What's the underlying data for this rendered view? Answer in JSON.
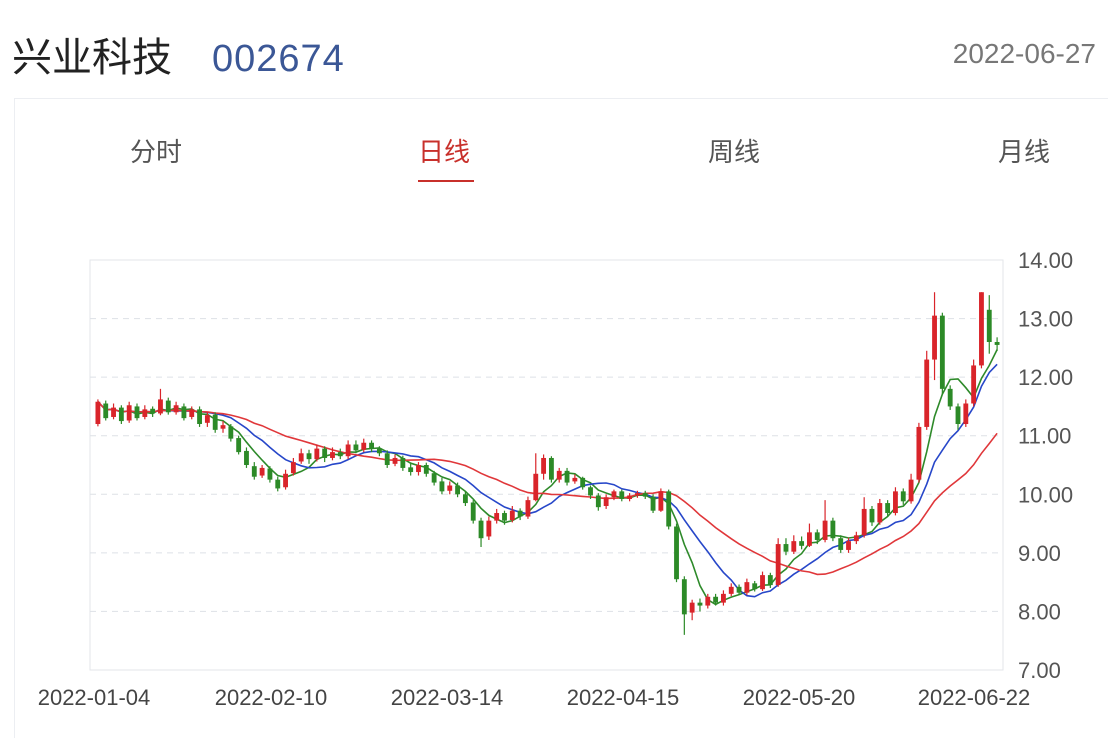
{
  "header": {
    "name": "兴业科技",
    "code": "002674",
    "date": "2022-06-27"
  },
  "tabs": [
    {
      "label": "分时",
      "active": false
    },
    {
      "label": "日线",
      "active": true
    },
    {
      "label": "周线",
      "active": false
    },
    {
      "label": "月线",
      "active": false
    }
  ],
  "colors": {
    "up": "#d9242a",
    "down": "#2c8a27",
    "ma_short": "#2e8a2a",
    "ma_mid": "#2747c9",
    "ma_long": "#e0373a",
    "accent": "#c8302b",
    "code": "#3b5796"
  },
  "chart_data": {
    "type": "candlestick",
    "ylim": [
      7.0,
      14.0
    ],
    "yticks": [
      "14.00",
      "13.00",
      "12.00",
      "11.00",
      "10.00",
      "9.00",
      "8.00",
      "7.00"
    ],
    "xticks": [
      "2022-01-04",
      "2022-02-10",
      "2022-03-14",
      "2022-04-15",
      "2022-05-20",
      "2022-06-22"
    ],
    "candles": [
      [
        11.2,
        11.58,
        11.62,
        11.16
      ],
      [
        11.55,
        11.3,
        11.6,
        11.26
      ],
      [
        11.32,
        11.48,
        11.55,
        11.28
      ],
      [
        11.48,
        11.25,
        11.52,
        11.2
      ],
      [
        11.26,
        11.52,
        11.58,
        11.22
      ],
      [
        11.5,
        11.3,
        11.55,
        11.26
      ],
      [
        11.32,
        11.45,
        11.52,
        11.28
      ],
      [
        11.46,
        11.38,
        11.5,
        11.32
      ],
      [
        11.38,
        11.62,
        11.8,
        11.35
      ],
      [
        11.6,
        11.4,
        11.65,
        11.36
      ],
      [
        11.4,
        11.52,
        11.58,
        11.36
      ],
      [
        11.5,
        11.3,
        11.55,
        11.26
      ],
      [
        11.32,
        11.45,
        11.5,
        11.28
      ],
      [
        11.45,
        11.2,
        11.5,
        11.15
      ],
      [
        11.22,
        11.35,
        11.4,
        11.15
      ],
      [
        11.36,
        11.1,
        11.4,
        11.05
      ],
      [
        11.12,
        11.18,
        11.25,
        11.05
      ],
      [
        11.16,
        10.95,
        11.2,
        10.9
      ],
      [
        10.96,
        10.72,
        11.0,
        10.68
      ],
      [
        10.74,
        10.5,
        10.8,
        10.45
      ],
      [
        10.48,
        10.3,
        10.55,
        10.25
      ],
      [
        10.32,
        10.45,
        10.5,
        10.28
      ],
      [
        10.44,
        10.25,
        10.48,
        10.2
      ],
      [
        10.25,
        10.1,
        10.3,
        10.05
      ],
      [
        10.12,
        10.35,
        10.42,
        10.08
      ],
      [
        10.36,
        10.55,
        10.62,
        10.32
      ],
      [
        10.56,
        10.7,
        10.78,
        10.52
      ],
      [
        10.7,
        10.6,
        10.76,
        10.52
      ],
      [
        10.6,
        10.78,
        10.85,
        10.56
      ],
      [
        10.78,
        10.62,
        10.82,
        10.55
      ],
      [
        10.62,
        10.72,
        10.8,
        10.58
      ],
      [
        10.72,
        10.65,
        10.78,
        10.6
      ],
      [
        10.65,
        10.85,
        10.92,
        10.6
      ],
      [
        10.85,
        10.75,
        10.92,
        10.7
      ],
      [
        10.76,
        10.88,
        10.95,
        10.72
      ],
      [
        10.88,
        10.78,
        10.92,
        10.72
      ],
      [
        10.78,
        10.7,
        10.82,
        10.65
      ],
      [
        10.7,
        10.5,
        10.75,
        10.45
      ],
      [
        10.52,
        10.62,
        10.68,
        10.48
      ],
      [
        10.62,
        10.45,
        10.66,
        10.4
      ],
      [
        10.46,
        10.38,
        10.52,
        10.32
      ],
      [
        10.38,
        10.5,
        10.55,
        10.32
      ],
      [
        10.5,
        10.35,
        10.54,
        10.3
      ],
      [
        10.36,
        10.2,
        10.4,
        10.15
      ],
      [
        10.22,
        10.05,
        10.28,
        10.0
      ],
      [
        10.06,
        10.15,
        10.22,
        10.0
      ],
      [
        10.15,
        10.0,
        10.2,
        9.95
      ],
      [
        10.0,
        9.85,
        10.05,
        9.8
      ],
      [
        9.86,
        9.55,
        9.9,
        9.5
      ],
      [
        9.55,
        9.25,
        9.6,
        9.1
      ],
      [
        9.28,
        9.55,
        9.62,
        9.22
      ],
      [
        9.55,
        9.68,
        9.75,
        9.5
      ],
      [
        9.68,
        9.55,
        9.72,
        9.48
      ],
      [
        9.56,
        9.72,
        9.8,
        9.52
      ],
      [
        9.72,
        9.62,
        9.76,
        9.56
      ],
      [
        9.62,
        9.9,
        9.96,
        9.58
      ],
      [
        9.9,
        10.35,
        10.7,
        9.88
      ],
      [
        10.35,
        10.62,
        10.68,
        10.25
      ],
      [
        10.62,
        10.25,
        10.65,
        10.2
      ],
      [
        10.25,
        10.4,
        10.45,
        10.2
      ],
      [
        10.4,
        10.2,
        10.45,
        10.15
      ],
      [
        10.22,
        10.28,
        10.34,
        10.18
      ],
      [
        10.28,
        10.12,
        10.3,
        10.08
      ],
      [
        10.12,
        9.98,
        10.15,
        9.92
      ],
      [
        9.98,
        9.78,
        10.02,
        9.72
      ],
      [
        9.8,
        9.95,
        10.0,
        9.75
      ],
      [
        9.95,
        10.05,
        10.08,
        9.9
      ],
      [
        10.05,
        9.92,
        10.08,
        9.88
      ],
      [
        9.92,
        9.98,
        10.02,
        9.88
      ],
      [
        9.98,
        10.02,
        10.06,
        9.94
      ],
      [
        10.02,
        9.96,
        10.06,
        9.92
      ],
      [
        9.96,
        9.72,
        10.0,
        9.68
      ],
      [
        9.72,
        10.05,
        10.1,
        9.7
      ],
      [
        10.05,
        9.45,
        10.08,
        9.4
      ],
      [
        9.45,
        8.55,
        9.5,
        8.5
      ],
      [
        8.55,
        7.95,
        8.6,
        7.6
      ],
      [
        7.98,
        8.15,
        8.2,
        7.85
      ],
      [
        8.15,
        8.1,
        8.22,
        8.0
      ],
      [
        8.1,
        8.25,
        8.3,
        8.05
      ],
      [
        8.25,
        8.15,
        8.3,
        8.1
      ],
      [
        8.15,
        8.3,
        8.36,
        8.1
      ],
      [
        8.3,
        8.42,
        8.48,
        8.26
      ],
      [
        8.42,
        8.32,
        8.46,
        8.28
      ],
      [
        8.32,
        8.5,
        8.56,
        8.28
      ],
      [
        8.48,
        8.38,
        8.52,
        8.34
      ],
      [
        8.38,
        8.62,
        8.68,
        8.35
      ],
      [
        8.62,
        8.45,
        8.66,
        8.4
      ],
      [
        8.45,
        9.15,
        9.25,
        8.42
      ],
      [
        9.15,
        9.02,
        9.25,
        8.96
      ],
      [
        9.02,
        9.2,
        9.3,
        8.98
      ],
      [
        9.2,
        9.12,
        9.28,
        9.06
      ],
      [
        9.12,
        9.35,
        9.5,
        9.1
      ],
      [
        9.35,
        9.22,
        9.4,
        9.15
      ],
      [
        9.22,
        9.55,
        9.9,
        9.18
      ],
      [
        9.55,
        9.25,
        9.6,
        9.2
      ],
      [
        9.25,
        9.05,
        9.3,
        9.0
      ],
      [
        9.05,
        9.2,
        9.26,
        9.0
      ],
      [
        9.2,
        9.3,
        9.36,
        9.15
      ],
      [
        9.3,
        9.75,
        9.95,
        9.26
      ],
      [
        9.75,
        9.52,
        9.8,
        9.46
      ],
      [
        9.52,
        9.85,
        9.92,
        9.48
      ],
      [
        9.85,
        9.68,
        9.9,
        9.62
      ],
      [
        9.68,
        10.05,
        10.12,
        9.64
      ],
      [
        10.05,
        9.88,
        10.1,
        9.82
      ],
      [
        9.88,
        10.25,
        10.35,
        9.84
      ],
      [
        10.25,
        11.15,
        11.22,
        10.2
      ],
      [
        11.15,
        12.3,
        12.45,
        11.1
      ],
      [
        12.3,
        13.05,
        13.45,
        11.95
      ],
      [
        13.05,
        11.8,
        13.1,
        11.7
      ],
      [
        11.8,
        11.5,
        11.86,
        11.44
      ],
      [
        11.5,
        11.2,
        11.55,
        11.1
      ],
      [
        11.2,
        11.55,
        11.62,
        11.15
      ],
      [
        11.55,
        12.2,
        12.3,
        11.5
      ],
      [
        12.2,
        13.45,
        13.45,
        12.15
      ],
      [
        13.15,
        12.6,
        13.4,
        12.4
      ],
      [
        12.6,
        12.55,
        12.68,
        12.45
      ]
    ]
  }
}
